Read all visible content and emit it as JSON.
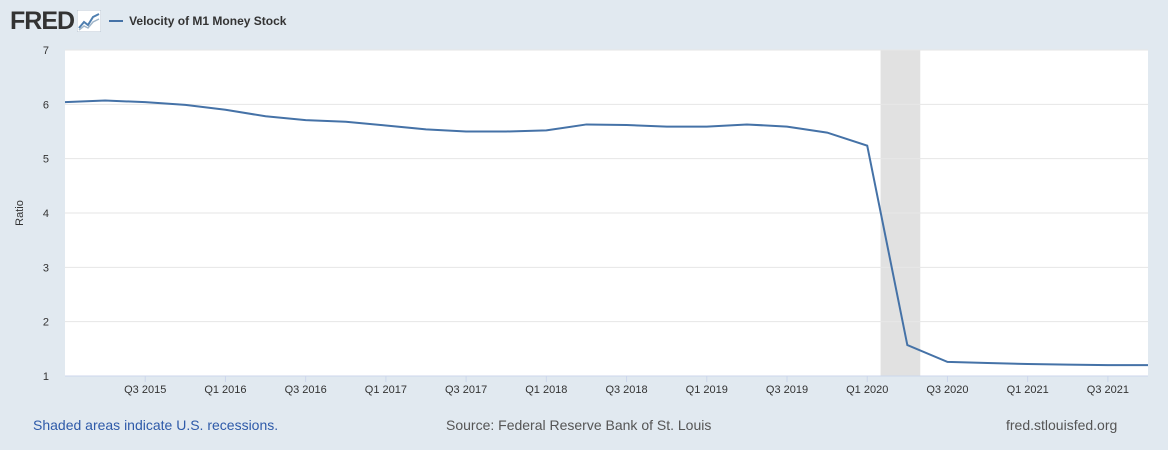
{
  "header": {
    "logo_text": "FRED",
    "legend_label": "Velocity of M1 Money Stock"
  },
  "footer": {
    "recession_note": "Shaded areas indicate U.S. recessions.",
    "source": "Source: Federal Reserve Bank of St. Louis",
    "site": "fred.stlouisfed.org"
  },
  "colors": {
    "series": "#4572a7",
    "recession": "#e1e1e1",
    "background": "#e1e9f0",
    "plot": "#ffffff",
    "gridline": "#e6e6e6"
  },
  "chart_data": {
    "type": "line",
    "ylabel": "Ratio",
    "ylim": [
      1,
      7
    ],
    "yticks": [
      1,
      2,
      3,
      4,
      5,
      6,
      7
    ],
    "grid": true,
    "xticks": [
      "Q3 2015",
      "Q1 2016",
      "Q3 2016",
      "Q1 2017",
      "Q3 2017",
      "Q1 2018",
      "Q3 2018",
      "Q1 2019",
      "Q3 2019",
      "Q1 2020",
      "Q3 2020",
      "Q1 2021",
      "Q3 2021"
    ],
    "x": [
      "Q1 2015",
      "Q2 2015",
      "Q3 2015",
      "Q4 2015",
      "Q1 2016",
      "Q2 2016",
      "Q3 2016",
      "Q4 2016",
      "Q1 2017",
      "Q2 2017",
      "Q3 2017",
      "Q4 2017",
      "Q1 2018",
      "Q2 2018",
      "Q3 2018",
      "Q4 2018",
      "Q1 2019",
      "Q2 2019",
      "Q3 2019",
      "Q4 2019",
      "Q1 2020",
      "Q2 2020",
      "Q3 2020",
      "Q4 2020",
      "Q1 2021",
      "Q2 2021",
      "Q3 2021",
      "Q4 2021"
    ],
    "series": [
      {
        "name": "Velocity of M1 Money Stock",
        "values": [
          6.04,
          6.07,
          6.04,
          5.99,
          5.9,
          5.78,
          5.71,
          5.68,
          5.61,
          5.54,
          5.5,
          5.5,
          5.52,
          5.63,
          5.62,
          5.59,
          5.59,
          5.63,
          5.59,
          5.48,
          5.24,
          1.57,
          1.26,
          1.24,
          1.22,
          1.21,
          1.2,
          1.2
        ]
      }
    ],
    "recessions": [
      [
        "2020-02-01",
        "2020-04-30"
      ]
    ]
  }
}
